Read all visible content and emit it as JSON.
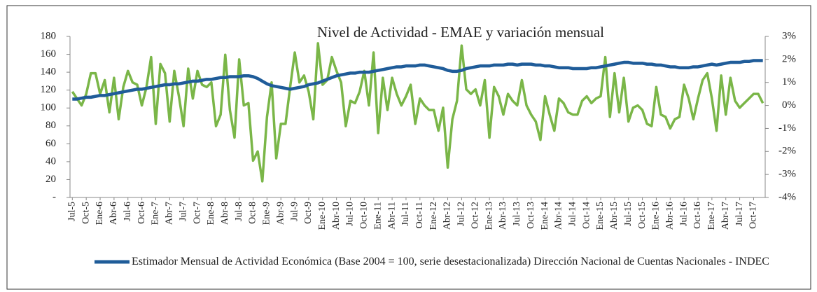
{
  "chart_data": {
    "type": "line",
    "title": "Nivel de Actividad - EMAE  y variación mensual",
    "categories": [
      "Jul-5",
      null,
      null,
      "Oct-5",
      null,
      null,
      "Ene-6",
      null,
      null,
      "Abr-6",
      null,
      null,
      "Jul-6",
      null,
      null,
      "Oct-6",
      null,
      null,
      "Ene-7",
      null,
      null,
      "Abr-7",
      null,
      null,
      "Jul-7",
      null,
      null,
      "Oct-7",
      null,
      null,
      "Ene-8",
      null,
      null,
      "Abr-8",
      null,
      null,
      "Jul-8",
      null,
      null,
      "Oct-8",
      null,
      null,
      "Ene-9",
      null,
      null,
      "Abr-9",
      null,
      null,
      "Jul-9",
      null,
      null,
      "Oct-9",
      null,
      null,
      "Ene-10",
      null,
      null,
      "Abr-10",
      null,
      null,
      "Jul-10",
      null,
      null,
      "Oct-10",
      null,
      null,
      "Ene-11",
      null,
      null,
      "Abr-11",
      null,
      null,
      "Jul-11",
      null,
      null,
      "Oct-11",
      null,
      null,
      "Ene-12",
      null,
      null,
      "Abr-12",
      null,
      null,
      "Jul-12",
      null,
      null,
      "Oct-12",
      null,
      null,
      "Ene-13",
      null,
      null,
      "Abr-13",
      null,
      null,
      "Jul-13",
      null,
      null,
      "Oct-13",
      null,
      null,
      "Ene-14",
      null,
      null,
      "Abr-14",
      null,
      null,
      "Jul-14",
      null,
      null,
      "Oct-14",
      null,
      null,
      "Ene-15",
      null,
      null,
      "Abr-15",
      null,
      null,
      "Jul-15",
      null,
      null,
      "Oct-15",
      null,
      null,
      "Ene-16",
      null,
      null,
      "Abr-16",
      null,
      null,
      "Jul-16",
      null,
      null,
      "Oct-16",
      null,
      null,
      "Ene-17",
      null,
      null,
      "Abr-17",
      null,
      null,
      "Jul-17",
      null,
      null,
      "Oct-17",
      null,
      null
    ],
    "series": [
      {
        "name": "Estimador Mensual de Actividad Económica (Base 2004 = 100, serie desestacionalizada) Dirección Nacional de Cuentas Nacionales - INDEC",
        "color": "#1f5c99",
        "values": [
          110,
          110,
          111,
          112,
          112,
          113,
          114,
          114,
          115,
          116,
          117,
          118,
          119,
          120,
          121,
          121,
          122,
          123,
          124,
          125,
          126,
          126,
          127,
          127,
          128,
          129,
          130,
          130,
          131,
          132,
          132,
          133,
          134,
          134,
          135,
          135,
          135,
          136,
          136,
          135,
          133,
          130,
          127,
          125,
          124,
          123,
          122,
          121,
          122,
          123,
          124,
          126,
          127,
          128,
          130,
          132,
          134,
          136,
          137,
          138,
          139,
          139,
          140,
          140,
          140,
          141,
          142,
          143,
          144,
          145,
          146,
          146,
          147,
          147,
          147,
          148,
          148,
          147,
          146,
          145,
          144,
          142,
          141,
          141,
          142,
          144,
          145,
          146,
          147,
          147,
          147,
          148,
          148,
          148,
          149,
          149,
          148,
          149,
          149,
          149,
          148,
          148,
          147,
          147,
          146,
          145,
          145,
          145,
          144,
          144,
          144,
          144,
          145,
          145,
          146,
          147,
          148,
          149,
          150,
          151,
          151,
          150,
          150,
          150,
          149,
          149,
          148,
          148,
          147,
          146,
          146,
          145,
          145,
          145,
          146,
          146,
          147,
          148,
          149,
          148,
          149,
          150,
          151,
          151,
          151,
          152,
          152,
          153,
          153,
          153
        ]
      },
      {
        "color": "#7ab648",
        "axis": "y2",
        "values": [
          0.6,
          0.3,
          0.0,
          0.5,
          1.4,
          1.4,
          0.5,
          1.1,
          -0.3,
          1.2,
          -0.6,
          0.8,
          1.5,
          1.0,
          0.9,
          0.0,
          0.8,
          2.1,
          -0.8,
          1.8,
          1.4,
          -0.7,
          1.5,
          0.4,
          -0.9,
          1.6,
          0.3,
          1.5,
          0.9,
          0.8,
          1.0,
          -0.9,
          -0.4,
          2.2,
          -0.2,
          -1.4,
          2.0,
          0.0,
          0.1,
          -2.4,
          -2.0,
          -3.3,
          -0.5,
          1.0,
          -2.3,
          -0.8,
          -0.8,
          0.8,
          2.3,
          1.0,
          1.3,
          0.6,
          -0.6,
          2.7,
          0.9,
          1.1,
          2.1,
          1.5,
          1.0,
          -0.9,
          0.2,
          0.1,
          0.6,
          1.5,
          0.0,
          2.3,
          -1.2,
          1.2,
          -0.2,
          1.2,
          0.5,
          0.0,
          0.4,
          0.9,
          -0.8,
          0.3,
          0.0,
          -0.2,
          -0.2,
          -1.1,
          -0.1,
          -2.7,
          -0.6,
          0.2,
          2.6,
          0.7,
          0.5,
          0.7,
          0.0,
          1.1,
          -1.4,
          0.8,
          0.4,
          -0.4,
          0.5,
          0.2,
          0.0,
          1.1,
          0.0,
          -0.4,
          -0.7,
          -1.5,
          0.4,
          -0.4,
          -1.1,
          0.3,
          0.1,
          -0.3,
          -0.4,
          -0.4,
          0.2,
          0.4,
          0.1,
          0.3,
          0.4,
          2.1,
          -0.5,
          1.4,
          -0.3,
          1.2,
          -0.7,
          -0.1,
          0.0,
          -0.2,
          -0.8,
          -0.9,
          0.8,
          -0.4,
          -0.5,
          -1.0,
          -0.6,
          -0.5,
          0.9,
          0.3,
          -0.6,
          0.3,
          1.1,
          1.4,
          0.3,
          -1.1,
          1.3,
          -0.4,
          1.2,
          0.2,
          -0.1,
          0.1,
          0.3,
          0.5,
          0.5,
          0.1
        ]
      }
    ],
    "ylim": [
      0,
      180
    ],
    "yticks": [
      {
        "value": 0,
        "label": "-"
      },
      20,
      40,
      60,
      80,
      100,
      120,
      140,
      160,
      180
    ],
    "y2lim": [
      -4,
      3
    ],
    "y2ticks": [
      {
        "value": -4,
        "label": "-4%"
      },
      {
        "value": -3,
        "label": "-3%"
      },
      {
        "value": -2,
        "label": "-2%"
      },
      {
        "value": -1,
        "label": "-1%"
      },
      {
        "value": 0,
        "label": "0%"
      },
      {
        "value": 1,
        "label": "1%"
      },
      {
        "value": 2,
        "label": "2%"
      },
      {
        "value": 3,
        "label": "3%"
      }
    ],
    "grid": false
  }
}
